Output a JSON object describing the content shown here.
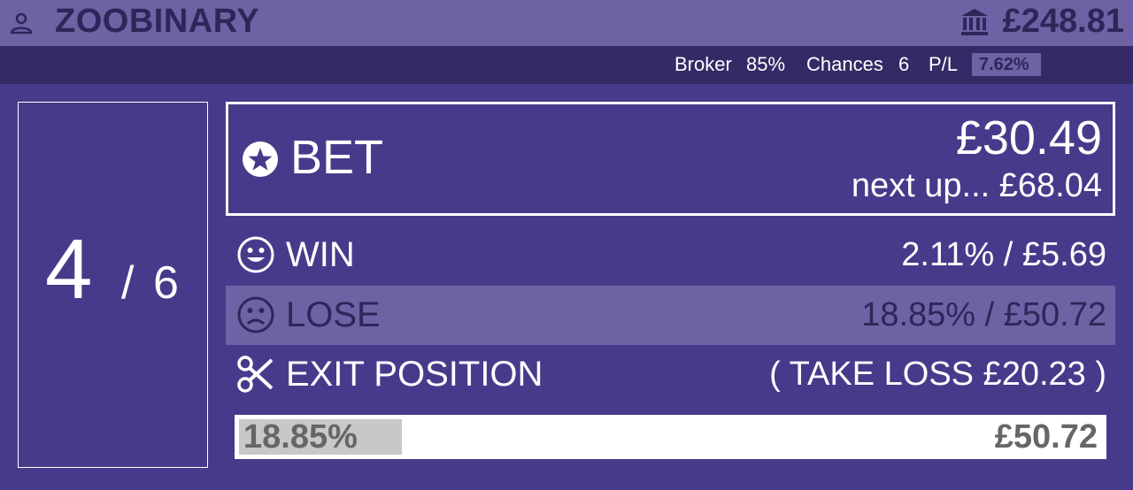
{
  "header": {
    "user_icon": "user-icon",
    "title": "ZOOBINARY",
    "bank_icon": "bank-icon",
    "balance": "£248.81"
  },
  "stats": {
    "broker_label": "Broker",
    "broker_value": "85%",
    "chances_label": "Chances",
    "chances_value": "6",
    "pl_label": "P/L",
    "pl_value": "7.62%"
  },
  "counter": {
    "current": "4",
    "separator": "/",
    "total": "6"
  },
  "bet": {
    "icon": "star-circle-icon",
    "label": "BET",
    "amount": "£30.49",
    "next_up": "next up... £68.04"
  },
  "win": {
    "icon": "smile-icon",
    "label": "WIN",
    "value": "2.11% / £5.69"
  },
  "lose": {
    "icon": "frown-icon",
    "label": "LOSE",
    "value": "18.85% / £50.72"
  },
  "exit": {
    "icon": "scissors-icon",
    "label": "EXIT POSITION",
    "value": "( TAKE LOSS £20.23 )"
  },
  "progress": {
    "left_text": "18.85%",
    "right_text": "£50.72",
    "fill_fraction": 0.1885
  },
  "colors": {
    "background": "#463b8b",
    "topbar": "#6c62a4",
    "statsbar": "#332a66",
    "highlight_text": "#2e2659"
  }
}
